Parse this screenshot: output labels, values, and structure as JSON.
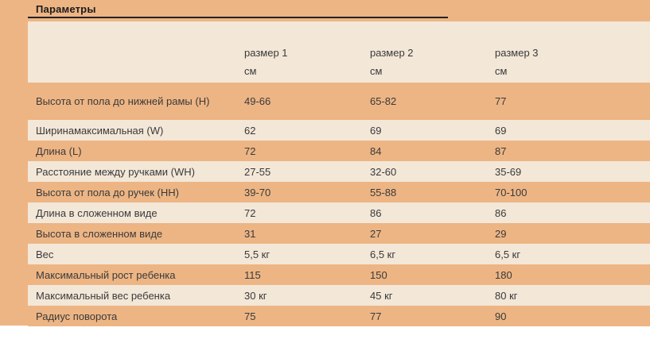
{
  "page": {
    "title": "Параметры",
    "colors": {
      "background": "#edb584",
      "row_light": "#f3e7d8",
      "row_dark": "#edb584",
      "title_text": "#1c1c1c",
      "body_text": "#3a3a3a",
      "underline": "#222222",
      "page_bottom": "#ffffff"
    }
  },
  "table": {
    "columns": [
      {
        "label": "размер 1",
        "unit": "см"
      },
      {
        "label": "размер 2",
        "unit": "см"
      },
      {
        "label": "размер 3",
        "unit": "см"
      }
    ],
    "rows": [
      {
        "label": "Высота от пола до нижней рамы (H)",
        "values": [
          "49-66",
          "65-82",
          "77"
        ]
      },
      {
        "label": "Ширинамаксимальная (W)",
        "values": [
          "62",
          "69",
          "69"
        ]
      },
      {
        "label": "Длина (L)",
        "values": [
          "72",
          "84",
          "87"
        ]
      },
      {
        "label": "Расстояние между ручками (WH)",
        "values": [
          "27-55",
          "32-60",
          "35-69"
        ]
      },
      {
        "label": "Высота от пола до ручек (HH)",
        "values": [
          "39-70",
          "55-88",
          "70-100"
        ]
      },
      {
        "label": "Длина в сложенном виде",
        "values": [
          "72",
          "86",
          "86"
        ]
      },
      {
        "label": "Высота в сложенном виде",
        "values": [
          "31",
          "27",
          "29"
        ]
      },
      {
        "label": "Вес",
        "values": [
          "5,5 кг",
          "6,5 кг",
          "6,5 кг"
        ]
      },
      {
        "label": "Максимальный рост ребенка",
        "values": [
          "115",
          "150",
          "180"
        ]
      },
      {
        "label": "Максимальный вес ребенка",
        "values": [
          "30 кг",
          "45 кг",
          "80 кг"
        ]
      },
      {
        "label": "Радиус поворота",
        "values": [
          "75",
          "77",
          "90"
        ]
      }
    ]
  }
}
